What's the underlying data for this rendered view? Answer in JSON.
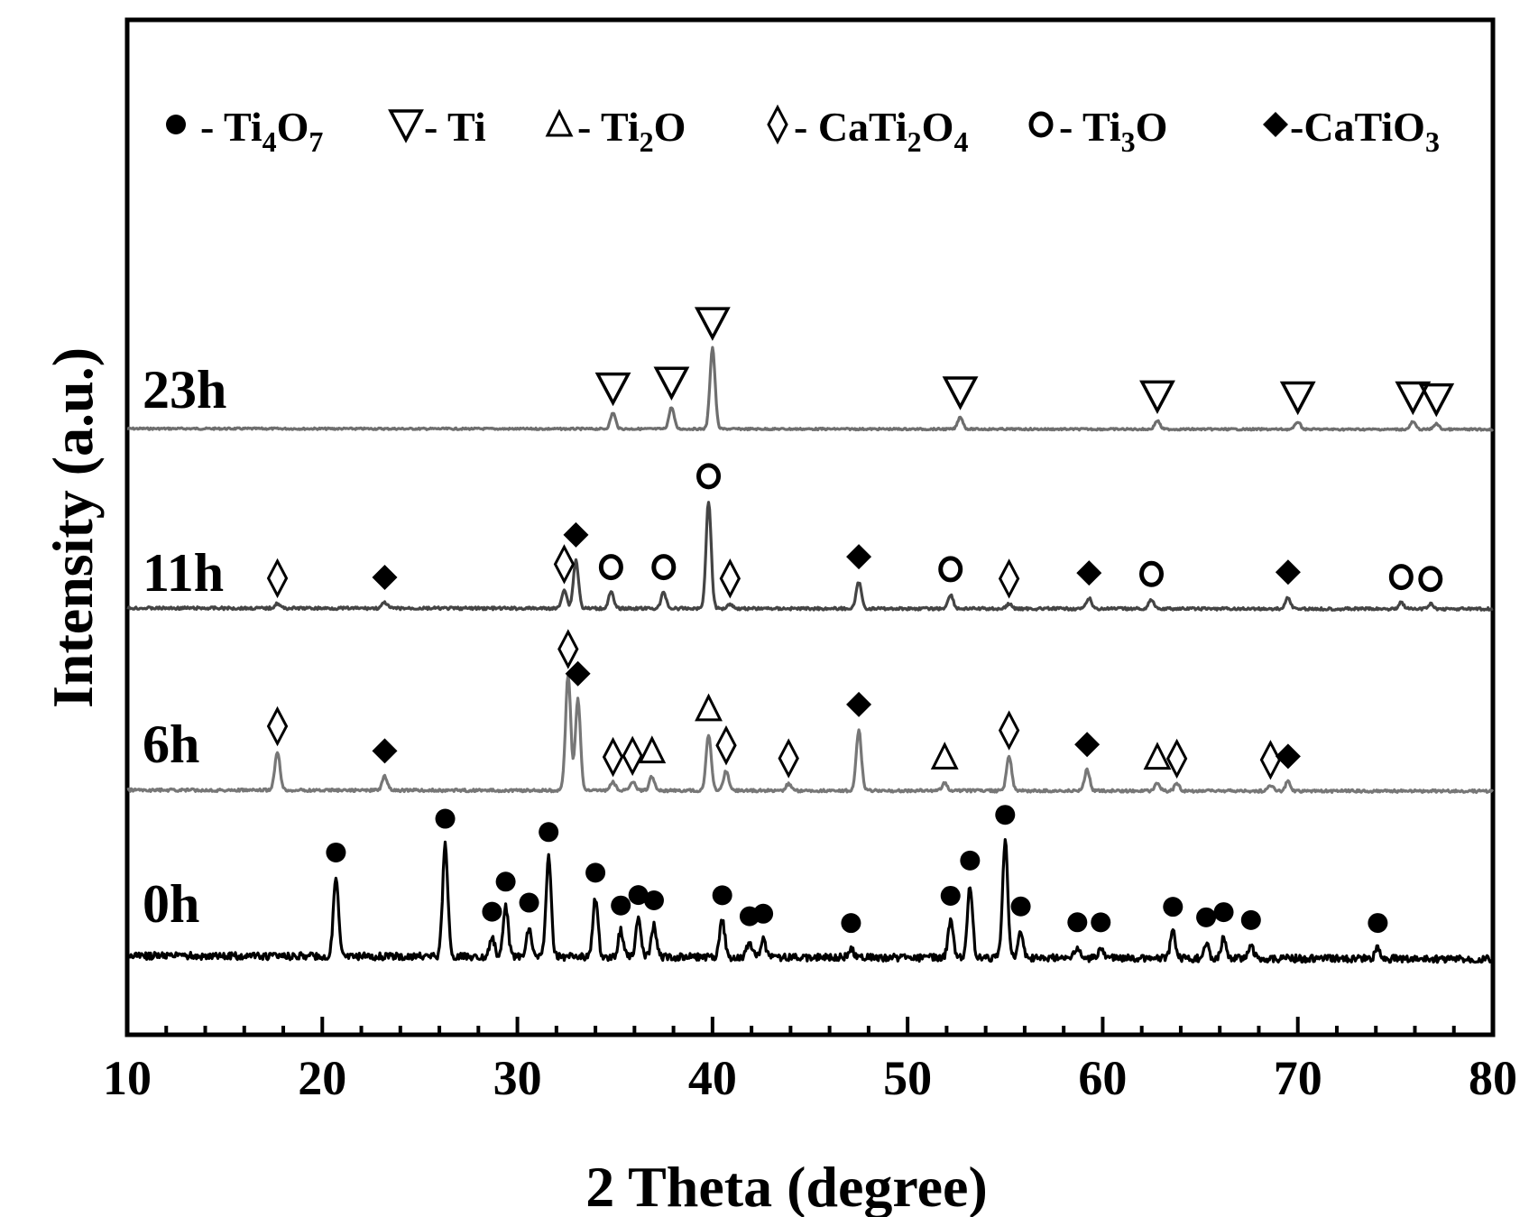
{
  "chart_data": {
    "type": "line",
    "xlabel": "2 Theta (degree)",
    "ylabel": "Intensity (a.u.)",
    "xlim": [
      10,
      80
    ],
    "xticks": [
      "10",
      "20",
      "30",
      "40",
      "50",
      "60",
      "70",
      "80"
    ],
    "grid": false,
    "legend_position": "top",
    "legend": [
      {
        "symbol": "filled-circle",
        "name": "Ti4O7",
        "label_parts": [
          "- Ti",
          "4",
          "O",
          "7"
        ]
      },
      {
        "symbol": "down-triangle",
        "name": "Ti",
        "label_parts": [
          "- Ti"
        ]
      },
      {
        "symbol": "up-triangle",
        "name": "Ti2O",
        "label_parts": [
          "- Ti",
          "2",
          "O"
        ]
      },
      {
        "symbol": "open-diamond",
        "name": "CaTi2O4",
        "label_parts": [
          "- CaTi",
          "2",
          "O",
          "4"
        ]
      },
      {
        "symbol": "open-circle",
        "name": "Ti3O",
        "label_parts": [
          "- Ti",
          "3",
          "O"
        ]
      },
      {
        "symbol": "filled-diamond",
        "name": "CaTiO3",
        "label_parts": [
          "-CaTiO",
          "3"
        ]
      }
    ],
    "series": [
      {
        "name": "23h",
        "color": "#6e6e6e",
        "peaks": [
          {
            "x": 34.9,
            "h": 17,
            "phase": "down-triangle"
          },
          {
            "x": 37.9,
            "h": 23,
            "phase": "down-triangle"
          },
          {
            "x": 40.0,
            "h": 86,
            "phase": "down-triangle"
          },
          {
            "x": 52.7,
            "h": 13,
            "phase": "down-triangle"
          },
          {
            "x": 62.8,
            "h": 9,
            "phase": "down-triangle"
          },
          {
            "x": 70.0,
            "h": 8,
            "phase": "down-triangle"
          },
          {
            "x": 75.9,
            "h": 8,
            "phase": "down-triangle"
          },
          {
            "x": 77.1,
            "h": 6,
            "phase": "down-triangle"
          }
        ]
      },
      {
        "name": "11h",
        "color": "#444444",
        "peaks": [
          {
            "x": 17.7,
            "h": 5,
            "phase": "open-diamond"
          },
          {
            "x": 23.2,
            "h": 6,
            "phase": "filled-diamond"
          },
          {
            "x": 32.4,
            "h": 20,
            "phase": "open-diamond"
          },
          {
            "x": 33.0,
            "h": 51,
            "phase": "filled-diamond"
          },
          {
            "x": 34.8,
            "h": 17,
            "phase": "open-circle"
          },
          {
            "x": 37.5,
            "h": 17,
            "phase": "open-circle"
          },
          {
            "x": 39.8,
            "h": 113,
            "phase": "open-circle"
          },
          {
            "x": 40.9,
            "h": 5,
            "phase": "open-diamond"
          },
          {
            "x": 47.5,
            "h": 28,
            "phase": "filled-diamond"
          },
          {
            "x": 52.2,
            "h": 15,
            "phase": "open-circle"
          },
          {
            "x": 55.2,
            "h": 5,
            "phase": "open-diamond"
          },
          {
            "x": 59.3,
            "h": 11,
            "phase": "filled-diamond"
          },
          {
            "x": 62.5,
            "h": 10,
            "phase": "open-circle"
          },
          {
            "x": 69.5,
            "h": 12,
            "phase": "filled-diamond"
          },
          {
            "x": 75.3,
            "h": 7,
            "phase": "open-circle"
          },
          {
            "x": 76.8,
            "h": 5,
            "phase": "open-circle"
          }
        ]
      },
      {
        "name": "6h",
        "color": "#777777",
        "peaks": [
          {
            "x": 17.7,
            "h": 33,
            "phase": "open-diamond"
          },
          {
            "x": 23.2,
            "h": 12,
            "phase": "filled-diamond"
          },
          {
            "x": 32.6,
            "h": 99,
            "phase": "open-diamond"
          },
          {
            "x": 33.1,
            "h": 78,
            "phase": "filled-diamond"
          },
          {
            "x": 34.9,
            "h": 7,
            "phase": "open-diamond"
          },
          {
            "x": 35.9,
            "h": 8,
            "phase": "open-diamond"
          },
          {
            "x": 36.9,
            "h": 12,
            "phase": "up-triangle"
          },
          {
            "x": 39.8,
            "h": 48,
            "phase": "up-triangle"
          },
          {
            "x": 40.7,
            "h": 17,
            "phase": "open-diamond"
          },
          {
            "x": 43.9,
            "h": 6,
            "phase": "open-diamond"
          },
          {
            "x": 47.5,
            "h": 52,
            "phase": "filled-diamond"
          },
          {
            "x": 51.9,
            "h": 7,
            "phase": "up-triangle"
          },
          {
            "x": 55.2,
            "h": 30,
            "phase": "open-diamond"
          },
          {
            "x": 59.2,
            "h": 18,
            "phase": "filled-diamond"
          },
          {
            "x": 62.8,
            "h": 7,
            "phase": "up-triangle"
          },
          {
            "x": 63.8,
            "h": 6,
            "phase": "open-diamond"
          },
          {
            "x": 68.6,
            "h": 5,
            "phase": "open-diamond"
          },
          {
            "x": 69.5,
            "h": 8,
            "phase": "filled-diamond"
          }
        ]
      },
      {
        "name": "0h",
        "color": "#000000",
        "peaks": [
          {
            "x": 20.7,
            "h": 60,
            "phase": "filled-circle"
          },
          {
            "x": 26.3,
            "h": 86,
            "phase": "filled-circle"
          },
          {
            "x": 28.7,
            "h": 15,
            "phase": "filled-circle"
          },
          {
            "x": 29.4,
            "h": 38,
            "phase": "filled-circle"
          },
          {
            "x": 30.6,
            "h": 22,
            "phase": "filled-circle"
          },
          {
            "x": 31.6,
            "h": 76,
            "phase": "filled-circle"
          },
          {
            "x": 34.0,
            "h": 45,
            "phase": "filled-circle"
          },
          {
            "x": 35.3,
            "h": 20,
            "phase": "filled-circle"
          },
          {
            "x": 36.2,
            "h": 28,
            "phase": "filled-circle"
          },
          {
            "x": 37.0,
            "h": 24,
            "phase": "filled-circle"
          },
          {
            "x": 40.5,
            "h": 28,
            "phase": "filled-circle"
          },
          {
            "x": 41.9,
            "h": 12,
            "phase": "filled-circle"
          },
          {
            "x": 42.6,
            "h": 14,
            "phase": "filled-circle"
          },
          {
            "x": 47.1,
            "h": 7,
            "phase": "filled-circle"
          },
          {
            "x": 52.2,
            "h": 28,
            "phase": "filled-circle"
          },
          {
            "x": 53.2,
            "h": 55,
            "phase": "filled-circle"
          },
          {
            "x": 55.0,
            "h": 90,
            "phase": "filled-circle"
          },
          {
            "x": 55.8,
            "h": 20,
            "phase": "filled-circle"
          },
          {
            "x": 58.7,
            "h": 8,
            "phase": "filled-circle"
          },
          {
            "x": 59.9,
            "h": 8,
            "phase": "filled-circle"
          },
          {
            "x": 63.6,
            "h": 20,
            "phase": "filled-circle"
          },
          {
            "x": 65.3,
            "h": 12,
            "phase": "filled-circle"
          },
          {
            "x": 66.2,
            "h": 16,
            "phase": "filled-circle"
          },
          {
            "x": 67.6,
            "h": 10,
            "phase": "filled-circle"
          },
          {
            "x": 74.1,
            "h": 8,
            "phase": "filled-circle"
          }
        ]
      }
    ]
  }
}
